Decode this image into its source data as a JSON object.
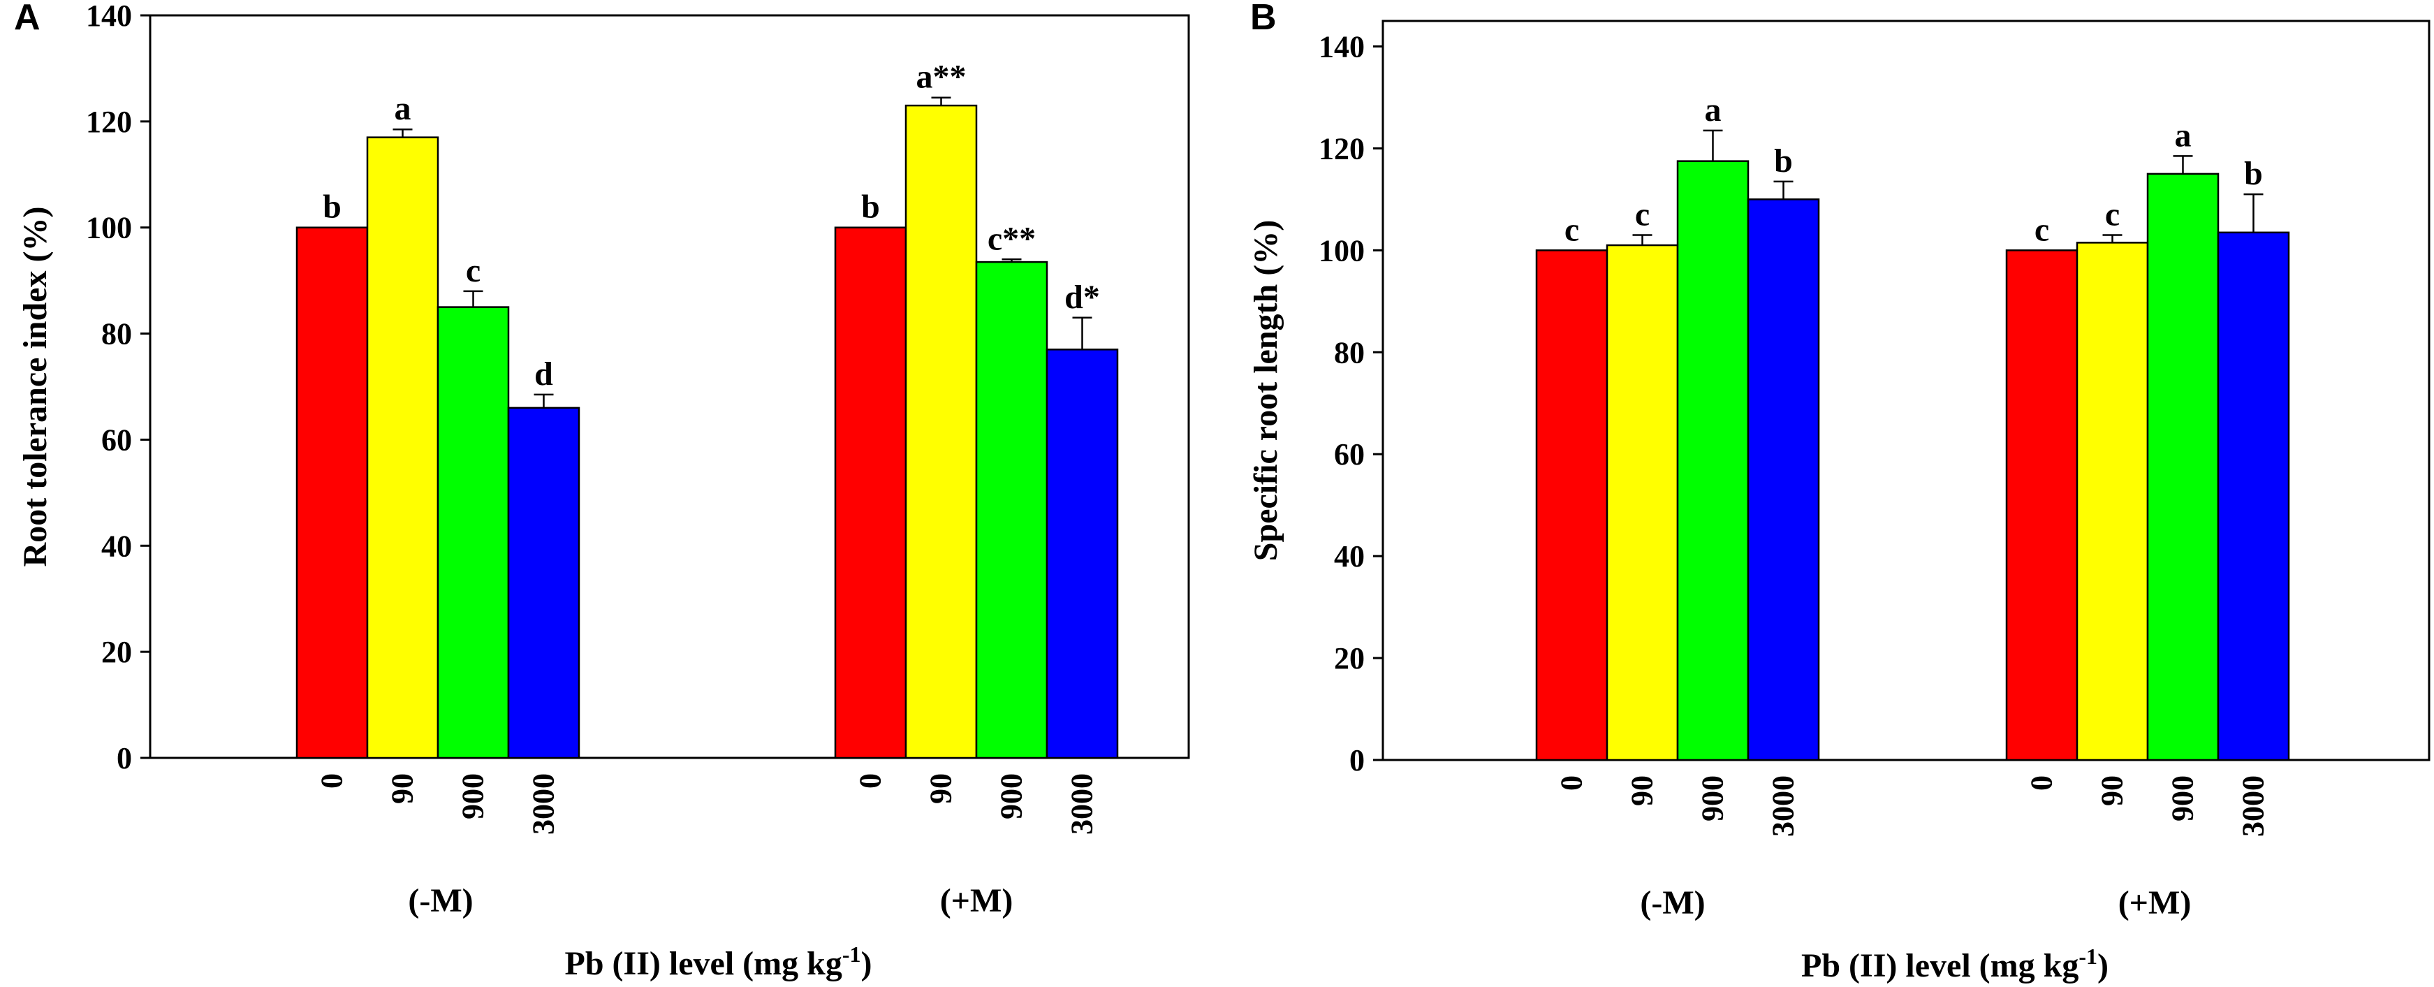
{
  "chart_data": [
    {
      "type": "bar",
      "panel": "A",
      "title": "",
      "xlabel_main": "Pb (II) level (mg kg",
      "xlabel_sup": "-1",
      "xlabel_end": ")",
      "ylabel": "Root tolerance index (%)",
      "ylim": [
        0,
        140
      ],
      "yticks": [
        0,
        20,
        40,
        60,
        80,
        100,
        120,
        140
      ],
      "categories": [
        "0",
        "90",
        "900",
        "3000"
      ],
      "groups": [
        {
          "name": "(-M)",
          "values": [
            100,
            117,
            85,
            66
          ],
          "errors": [
            0,
            1.5,
            3,
            2.5
          ],
          "labels": [
            "b",
            "a",
            "c",
            "d"
          ]
        },
        {
          "name": "(+M)",
          "values": [
            100,
            123,
            93.5,
            77
          ],
          "errors": [
            0,
            1.5,
            0.5,
            6
          ],
          "labels": [
            "b",
            "a**",
            "c**",
            "d*"
          ]
        }
      ],
      "colors": [
        "#ff0000",
        "#ffff00",
        "#00ff00",
        "#0000ff"
      ]
    },
    {
      "type": "bar",
      "panel": "B",
      "title": "",
      "xlabel_main": "Pb (II) level (mg kg",
      "xlabel_sup": "-1",
      "xlabel_end": ")",
      "ylabel": "Specific root length (%)",
      "ylim": [
        0,
        145
      ],
      "yticks": [
        0,
        20,
        40,
        60,
        80,
        100,
        120,
        140
      ],
      "categories": [
        "0",
        "90",
        "900",
        "3000"
      ],
      "groups": [
        {
          "name": "(-M)",
          "values": [
            100,
            101,
            117.5,
            110
          ],
          "errors": [
            0,
            2,
            6,
            3.5
          ],
          "labels": [
            "c",
            "c",
            "a",
            "b"
          ]
        },
        {
          "name": "(+M)",
          "values": [
            100,
            101.5,
            115,
            103.5
          ],
          "errors": [
            0,
            1.5,
            3.5,
            7.5
          ],
          "labels": [
            "c",
            "c",
            "a",
            "b"
          ]
        }
      ],
      "colors": [
        "#ff0000",
        "#ffff00",
        "#00ff00",
        "#0000ff"
      ]
    }
  ]
}
